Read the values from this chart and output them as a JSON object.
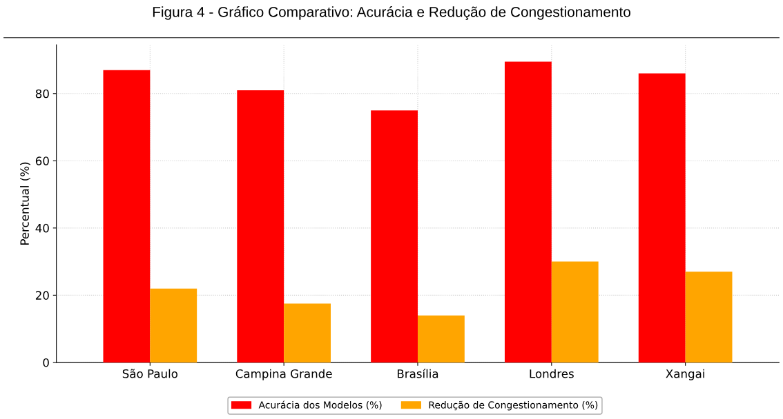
{
  "chart_data": {
    "type": "bar",
    "title": "Figura 4 - Gráfico Comparativo: Acurácia e Redução de Congestionamento",
    "ylabel": "Percentual (%)",
    "categories": [
      "São Paulo",
      "Campina Grande",
      "Brasília",
      "Londres",
      "Xangai"
    ],
    "series": [
      {
        "name": "Acurácia dos Modelos (%)",
        "color": "#ff0000",
        "values": [
          87,
          81,
          75,
          89.5,
          86
        ]
      },
      {
        "name": "Redução de Congestionamento (%)",
        "color": "#ffa500",
        "values": [
          22,
          17.5,
          14,
          30,
          27
        ]
      }
    ],
    "ylim": [
      0,
      94.5
    ],
    "yticks": [
      0,
      20,
      40,
      60,
      80
    ],
    "grid": true,
    "legend": "bottom"
  }
}
